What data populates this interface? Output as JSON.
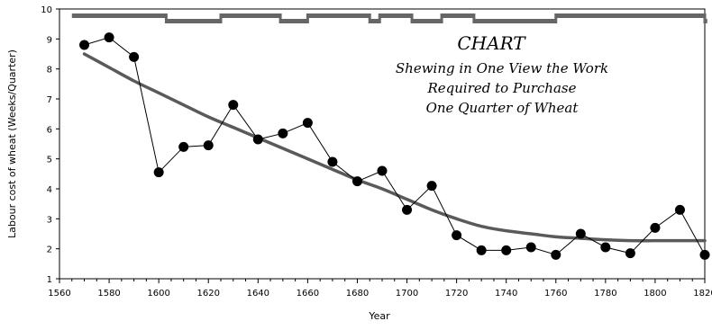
{
  "chart_data": {
    "type": "line",
    "title": "CHART",
    "subtitle_lines": [
      "Shewing in One View the Work",
      "Required to Purchase",
      "One Quarter of Wheat"
    ],
    "xlabel": "Year",
    "ylabel": "Labour cost of wheat (Weeks/Quarter)",
    "xlim": [
      1560,
      1820
    ],
    "ylim": [
      1,
      10
    ],
    "x_ticks": [
      1560,
      1580,
      1600,
      1620,
      1640,
      1660,
      1680,
      1700,
      1720,
      1740,
      1760,
      1780,
      1800,
      1820
    ],
    "y_ticks": [
      1,
      2,
      3,
      4,
      5,
      6,
      7,
      8,
      9,
      10
    ],
    "grid": false,
    "series": [
      {
        "kind": "points_connected",
        "color": "#000000",
        "x": [
          1570,
          1580,
          1590,
          1600,
          1610,
          1620,
          1630,
          1640,
          1650,
          1660,
          1670,
          1680,
          1690,
          1700,
          1710,
          1720,
          1730,
          1740,
          1750,
          1760,
          1770,
          1780,
          1790,
          1800,
          1810,
          1820
        ],
        "y": [
          8.8,
          9.05,
          8.4,
          4.55,
          5.4,
          5.45,
          6.8,
          5.65,
          5.85,
          6.2,
          4.9,
          4.25,
          4.6,
          3.3,
          4.1,
          2.45,
          1.95,
          1.95,
          2.05,
          1.8,
          2.5,
          2.05,
          1.85,
          2.7,
          3.3,
          1.8
        ]
      },
      {
        "kind": "smooth_trend",
        "color": "#5a5a5a",
        "x": [
          1570,
          1580,
          1590,
          1600,
          1610,
          1620,
          1630,
          1640,
          1650,
          1660,
          1670,
          1680,
          1690,
          1700,
          1710,
          1720,
          1730,
          1740,
          1750,
          1760,
          1770,
          1780,
          1790,
          1800,
          1810,
          1820
        ],
        "y": [
          8.5,
          8.05,
          7.6,
          7.2,
          6.8,
          6.4,
          6.05,
          5.7,
          5.35,
          5.0,
          4.65,
          4.3,
          4.0,
          3.65,
          3.3,
          3.0,
          2.75,
          2.6,
          2.5,
          2.4,
          2.35,
          2.3,
          2.27,
          2.27,
          2.27,
          2.27
        ]
      }
    ],
    "reigns_band": {
      "color": "#666666",
      "segments": [
        {
          "start": 1565,
          "end": 1603,
          "position": "upper"
        },
        {
          "start": 1603,
          "end": 1625,
          "position": "lower"
        },
        {
          "start": 1625,
          "end": 1649,
          "position": "upper"
        },
        {
          "start": 1649,
          "end": 1660,
          "position": "lower"
        },
        {
          "start": 1660,
          "end": 1685,
          "position": "upper"
        },
        {
          "start": 1685,
          "end": 1689,
          "position": "lower"
        },
        {
          "start": 1689,
          "end": 1702,
          "position": "upper"
        },
        {
          "start": 1702,
          "end": 1714,
          "position": "lower"
        },
        {
          "start": 1714,
          "end": 1727,
          "position": "upper"
        },
        {
          "start": 1727,
          "end": 1760,
          "position": "lower"
        },
        {
          "start": 1760,
          "end": 1820,
          "position": "upper"
        },
        {
          "start": 1820,
          "end": 1821,
          "position": "lower"
        }
      ]
    }
  }
}
